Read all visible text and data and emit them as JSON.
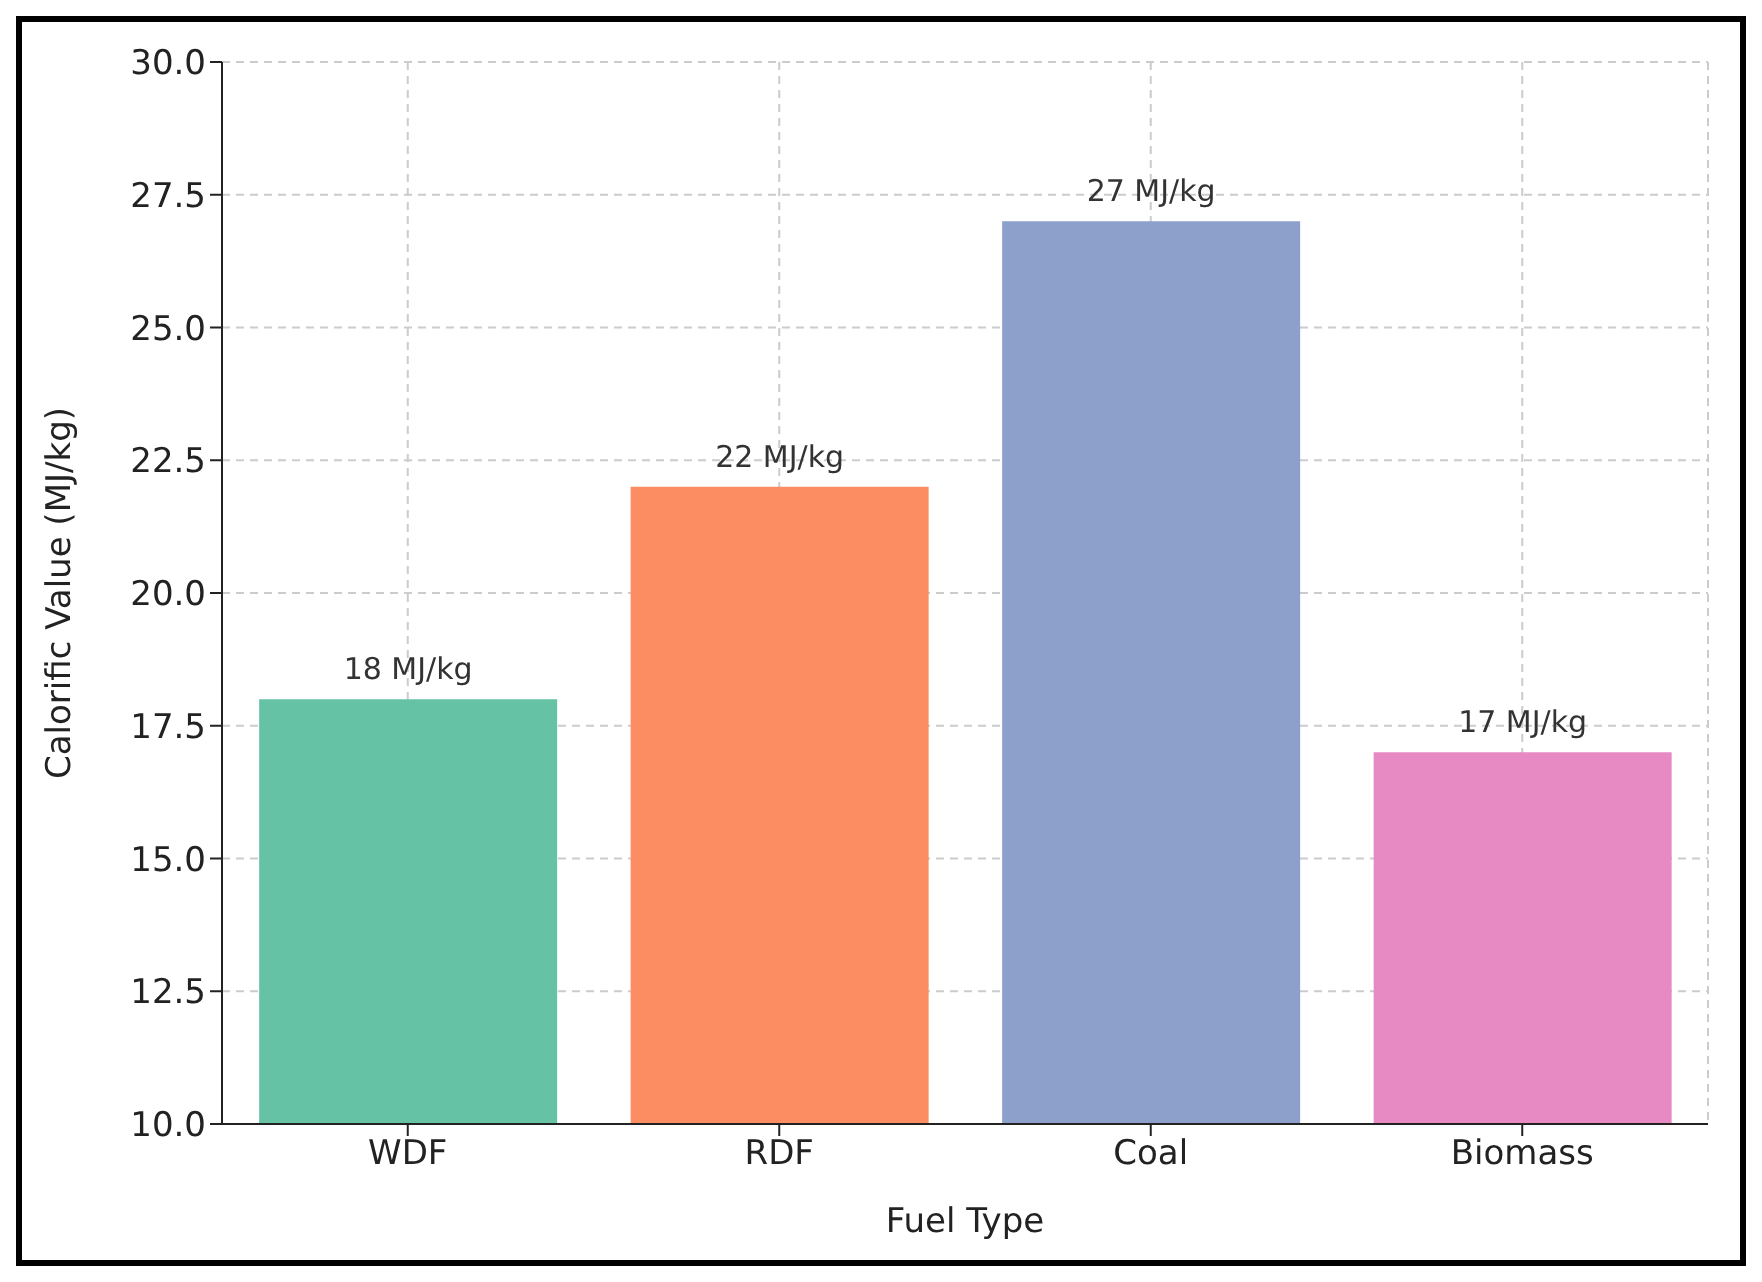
{
  "chart_data": {
    "type": "bar",
    "xlabel": "Fuel Type",
    "ylabel": "Calorific Value (MJ/kg)",
    "categories": [
      "WDF",
      "RDF",
      "Coal",
      "Biomass"
    ],
    "values": [
      18,
      22,
      27,
      17
    ],
    "colors": [
      "#66c2a5",
      "#fc8d62",
      "#8da0cb",
      "#e78ac3"
    ],
    "value_labels": [
      "18 MJ/kg",
      "22 MJ/kg",
      "27 MJ/kg",
      "17 MJ/kg"
    ],
    "ylim": [
      10,
      30
    ],
    "yticks": [
      {
        "value": 10,
        "label": "10.0"
      },
      12.5,
      {
        "value": 15,
        "label": "15.0"
      },
      17.5,
      {
        "value": 20,
        "label": "20.0"
      },
      22.5,
      {
        "value": 25,
        "label": "25.0"
      },
      27.5,
      {
        "value": 30,
        "label": "30.0"
      }
    ],
    "grid": true
  }
}
